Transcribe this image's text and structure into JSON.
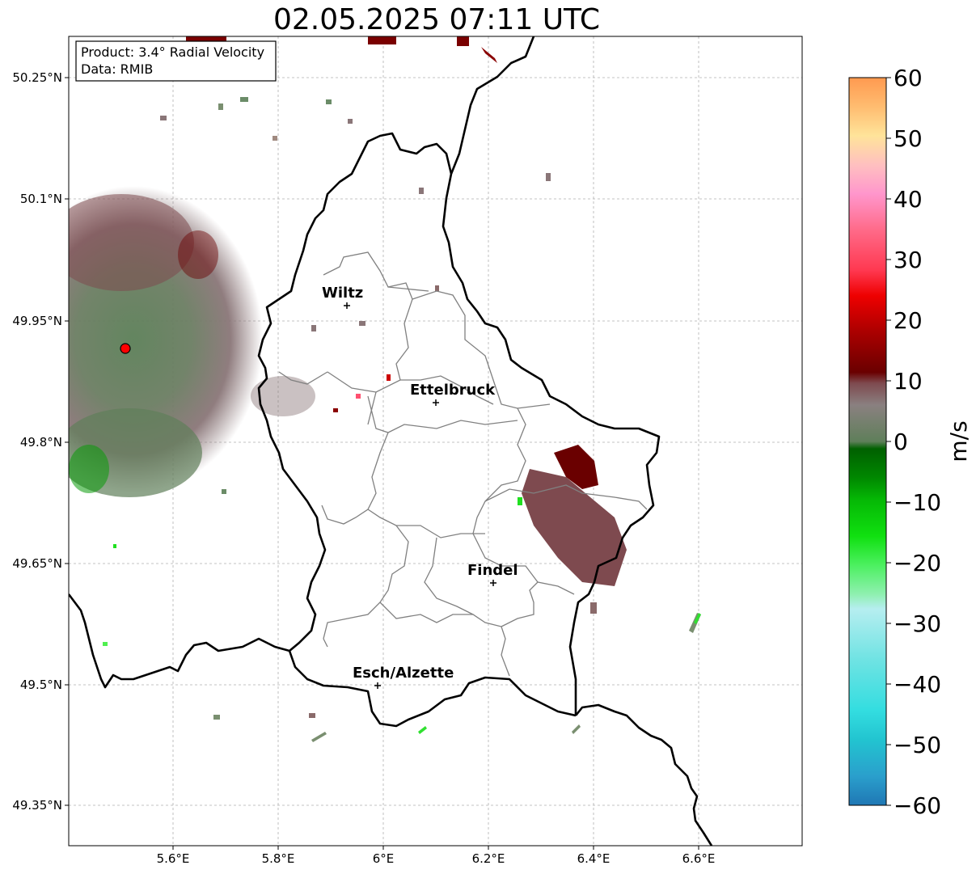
{
  "title": "02.05.2025 07:11 UTC",
  "info_box": {
    "line1": "Product: 3.4° Radial Velocity",
    "line2": "Data: RMIB"
  },
  "axes": {
    "x_ticks": [
      "5.6°E",
      "5.8°E",
      "6°E",
      "6.2°E",
      "6.4°E",
      "6.6°E"
    ],
    "y_ticks": [
      "50.25°N",
      "50.1°N",
      "49.95°N",
      "49.8°N",
      "49.65°N",
      "49.5°N",
      "49.35°N"
    ],
    "grid": true
  },
  "cities": [
    {
      "name": "Wiltz"
    },
    {
      "name": "Ettelbruck"
    },
    {
      "name": "Findel"
    },
    {
      "name": "Esch/Alzette"
    }
  ],
  "colorbar": {
    "label": "m/s",
    "ticks": [
      "60",
      "50",
      "40",
      "30",
      "20",
      "10",
      "0",
      "−10",
      "−20",
      "−30",
      "−40",
      "−50",
      "−60"
    ],
    "range": [
      -60,
      60
    ]
  },
  "colors": {
    "border": "#000000",
    "cantons": "#808080",
    "radar_site": "#ff0000"
  }
}
